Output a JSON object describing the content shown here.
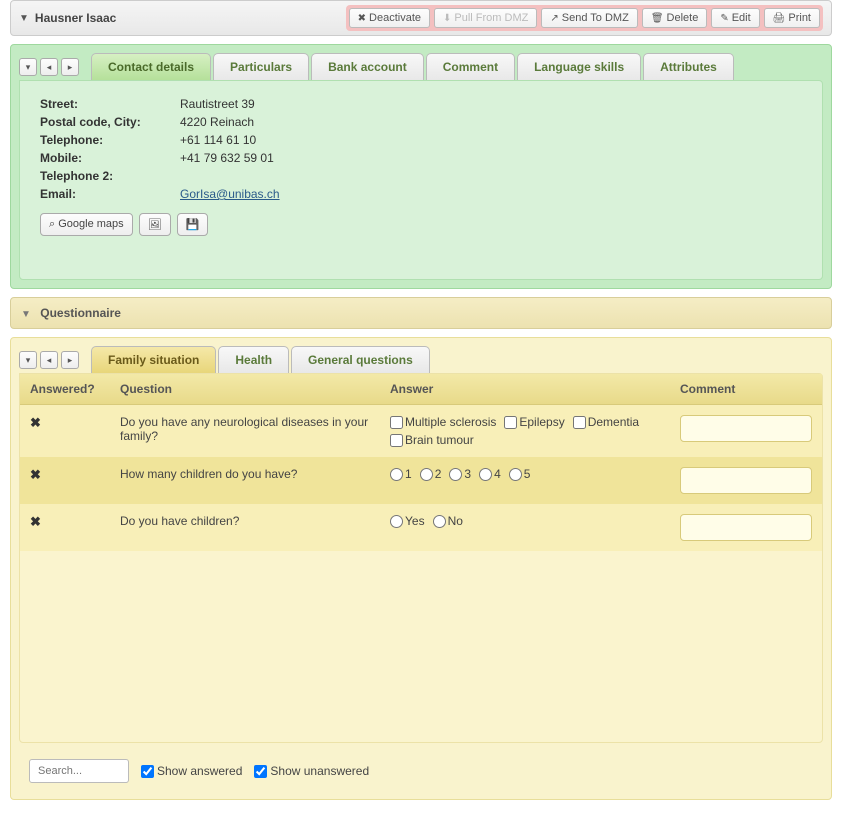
{
  "header": {
    "name": "Hausner Isaac",
    "actions": {
      "deactivate": "Deactivate",
      "pull": "Pull From DMZ",
      "send": "Send To DMZ",
      "delete": "Delete",
      "edit": "Edit",
      "print": "Print"
    }
  },
  "contact_tabs": {
    "t0": "Contact details",
    "t1": "Particulars",
    "t2": "Bank account",
    "t3": "Comment",
    "t4": "Language skills",
    "t5": "Attributes"
  },
  "contact": {
    "labels": {
      "street": "Street:",
      "postal": "Postal code, City:",
      "telephone": "Telephone:",
      "mobile": "Mobile:",
      "telephone2": "Telephone 2:",
      "email": "Email:"
    },
    "values": {
      "street": "Rautistreet 39",
      "postal": "4220 Reinach",
      "telephone": "+61 114 61 10",
      "mobile": "+41 79 632 59 01",
      "telephone2": "",
      "email": "GorIsa@unibas.ch"
    },
    "buttons": {
      "maps": "Google maps"
    }
  },
  "questionnaire": {
    "title": "Questionnaire",
    "tabs": {
      "t0": "Family situation",
      "t1": "Health",
      "t2": "General questions"
    },
    "columns": {
      "answered": "Answered?",
      "question": "Question",
      "answer": "Answer",
      "comment": "Comment"
    },
    "rows": {
      "r0": {
        "question": "Do you have any neurological diseases in your family?",
        "opts": {
          "o0": "Multiple sclerosis",
          "o1": "Epilepsy",
          "o2": "Dementia",
          "o3": "Brain tumour"
        }
      },
      "r1": {
        "question": "How many children do you have?",
        "opts": {
          "o0": "1",
          "o1": "2",
          "o2": "3",
          "o3": "4",
          "o4": "5"
        }
      },
      "r2": {
        "question": "Do you have children?",
        "opts": {
          "o0": "Yes",
          "o1": "No"
        }
      }
    },
    "footer": {
      "search_placeholder": "Search...",
      "show_answered": "Show answered",
      "show_unanswered": "Show unanswered"
    }
  },
  "colors": {
    "green_panel": "#c3ebc3",
    "yellow_panel": "#f9f3cd",
    "pink_toolbar": "#f4c0c0"
  }
}
